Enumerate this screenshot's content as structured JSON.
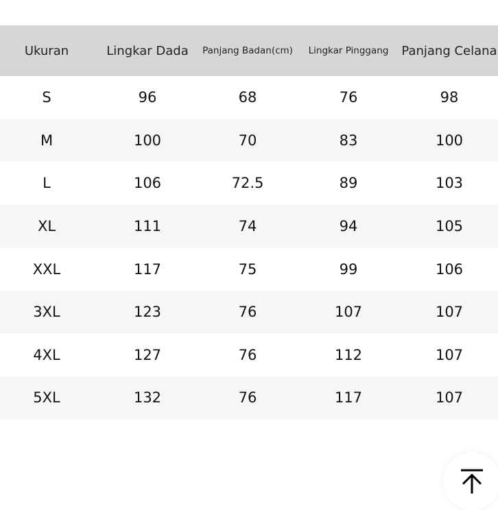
{
  "table": {
    "headers": [
      "Ukuran",
      "Lingkar Dada",
      "Panjang Badan(cm)",
      "Lingkar Pinggang",
      "Panjang Celana"
    ],
    "rows": [
      [
        "S",
        "96",
        "68",
        "76",
        "98"
      ],
      [
        "M",
        "100",
        "70",
        "83",
        "100"
      ],
      [
        "L",
        "106",
        "72.5",
        "89",
        "103"
      ],
      [
        "XL",
        "111",
        "74",
        "94",
        "105"
      ],
      [
        "XXL",
        "117",
        "75",
        "99",
        "106"
      ],
      [
        "3XL",
        "123",
        "76",
        "107",
        "107"
      ],
      [
        "4XL",
        "127",
        "76",
        "112",
        "107"
      ],
      [
        "5XL",
        "132",
        "76",
        "117",
        "107"
      ]
    ]
  },
  "scroll_top_icon": "arrow-up-to-top-icon",
  "colors": {
    "header_bg": "#d6d6d6",
    "alt_row_bg": "#f6f6f6"
  }
}
